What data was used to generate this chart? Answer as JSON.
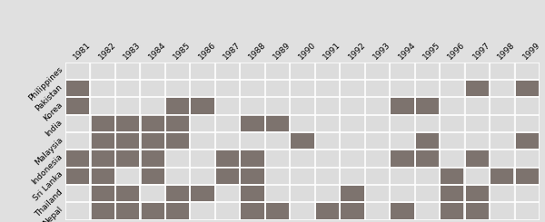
{
  "countries": [
    "Philippines",
    "Pakistan",
    "Korea",
    "India",
    "Malaysia",
    "Indonesia",
    "Sri Lanka",
    "Thailand",
    "Nepal"
  ],
  "years": [
    1981,
    1982,
    1983,
    1984,
    1985,
    1986,
    1987,
    1988,
    1989,
    1990,
    1991,
    1992,
    1993,
    1994,
    1995,
    1996,
    1997,
    1998,
    1999
  ],
  "missing": {
    "Philippines": [],
    "Pakistan": [
      1981,
      1997,
      1999
    ],
    "Korea": [
      1981,
      1985,
      1986,
      1994,
      1995
    ],
    "India": [
      1982,
      1983,
      1984,
      1985,
      1988,
      1989
    ],
    "Malaysia": [
      1982,
      1983,
      1984,
      1985,
      1990,
      1995,
      1999
    ],
    "Indonesia": [
      1981,
      1982,
      1983,
      1984,
      1987,
      1988,
      1994,
      1995,
      1997
    ],
    "Sri Lanka": [
      1981,
      1982,
      1984,
      1987,
      1988,
      1996,
      1998,
      1999
    ],
    "Thailand": [
      1982,
      1983,
      1985,
      1986,
      1988,
      1992,
      1996,
      1997
    ],
    "Nepal": [
      1982,
      1983,
      1984,
      1985,
      1988,
      1989,
      1991,
      1992,
      1994,
      1996,
      1997
    ]
  },
  "missing_color": "#7d736e",
  "present_color": "#dcdcdc",
  "background_color": "#e0e0e0",
  "tick_label_fontsize": 6.5,
  "ylabel_fontsize": 6.5,
  "grid_color": "#ffffff",
  "grid_linewidth": 1.2
}
